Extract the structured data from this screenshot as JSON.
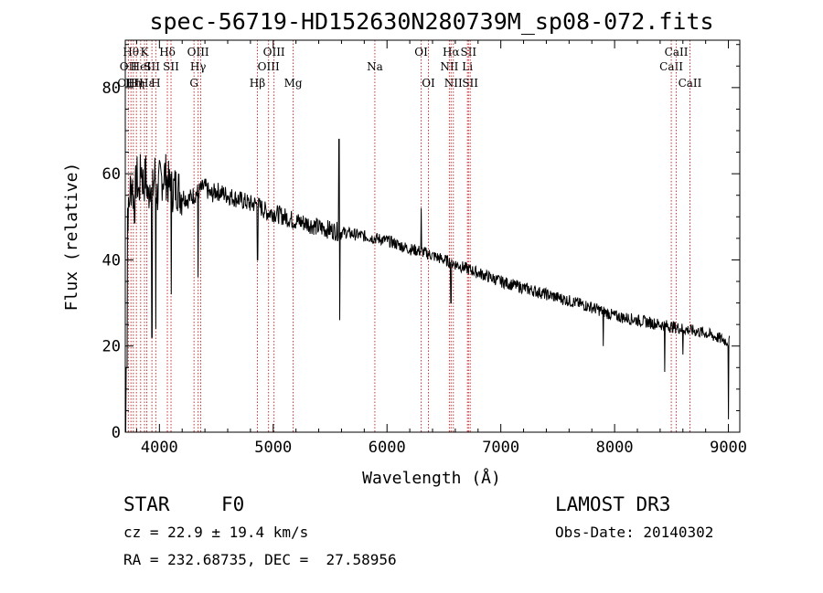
{
  "chart_data": {
    "type": "line",
    "title": "spec-56719-HD152630N280739M_sp08-072.fits",
    "xlabel": "Wavelength (Å)",
    "ylabel": "Flux (relative)",
    "xlim": [
      3700,
      9100
    ],
    "ylim": [
      0,
      91
    ],
    "xticks": [
      4000,
      5000,
      6000,
      7000,
      8000,
      9000
    ],
    "yticks": [
      0,
      20,
      40,
      60,
      80
    ],
    "series": [
      {
        "name": "flux",
        "x": [
          3700,
          3710,
          3720,
          3730,
          3740,
          3760,
          3780,
          3800,
          3820,
          3840,
          3860,
          3880,
          3900,
          3920,
          3940,
          3960,
          3980,
          4000,
          4050,
          4100,
          4150,
          4200,
          4250,
          4300,
          4350,
          4400,
          4450,
          4500,
          4600,
          4700,
          4800,
          4850,
          4900,
          4950,
          5000,
          5100,
          5200,
          5300,
          5400,
          5500,
          5580,
          5600,
          5700,
          5800,
          5900,
          6000,
          6100,
          6200,
          6300,
          6400,
          6500,
          6560,
          6600,
          6700,
          6800,
          6900,
          7000,
          7200,
          7400,
          7600,
          7800,
          7900,
          8000,
          8200,
          8400,
          8500,
          8600,
          8700,
          8800,
          8900,
          9000
        ],
        "y": [
          0,
          48,
          52,
          50,
          56,
          58,
          52,
          60,
          55,
          62,
          57,
          60,
          54,
          59,
          56,
          60,
          55,
          58,
          60,
          56,
          57,
          55,
          54,
          55,
          56,
          57,
          55,
          56,
          55,
          54,
          53,
          53,
          52,
          51,
          51,
          50,
          49,
          48.5,
          47.5,
          47,
          46.5,
          46.5,
          46,
          45.5,
          45,
          44.5,
          43.5,
          42.5,
          42,
          41,
          40,
          39.5,
          39,
          38,
          37,
          36,
          35,
          33.5,
          32,
          30.5,
          29,
          28,
          27,
          26,
          25,
          24.5,
          24,
          23.5,
          23,
          22,
          21
        ]
      }
    ],
    "emission_spikes": [
      {
        "x": 5577,
        "y": 68
      },
      {
        "x": 6300,
        "y": 52
      },
      {
        "x": 4100,
        "y": 60
      }
    ],
    "absorption_dips": [
      {
        "x": 3934,
        "y": 22
      },
      {
        "x": 3968,
        "y": 24
      },
      {
        "x": 4101,
        "y": 32
      },
      {
        "x": 4340,
        "y": 36
      },
      {
        "x": 4861,
        "y": 40
      },
      {
        "x": 5584,
        "y": 26
      },
      {
        "x": 6563,
        "y": 30
      },
      {
        "x": 7900,
        "y": 20
      },
      {
        "x": 8440,
        "y": 14
      },
      {
        "x": 8600,
        "y": 18
      },
      {
        "x": 9000,
        "y": 3
      }
    ],
    "line_markers": [
      {
        "x": 3727,
        "labels": [
          "OII",
          "OIII"
        ],
        "rows": [
          1,
          2
        ]
      },
      {
        "x": 3750,
        "labels": [
          "Hθ"
        ],
        "rows": [
          0
        ]
      },
      {
        "x": 3771,
        "labels": [
          "Hη"
        ],
        "rows": [
          2
        ]
      },
      {
        "x": 3798,
        "labels": [
          "Hη"
        ],
        "rows": [
          2
        ]
      },
      {
        "x": 3835,
        "labels": [
          "HeI"
        ],
        "rows": [
          1
        ]
      },
      {
        "x": 3869,
        "labels": [
          "K"
        ],
        "rows": [
          0
        ]
      },
      {
        "x": 3889,
        "labels": [
          "Hε"
        ],
        "rows": [
          2
        ]
      },
      {
        "x": 3934,
        "labels": [
          "SII"
        ],
        "rows": [
          1
        ]
      },
      {
        "x": 3968,
        "labels": [
          "H"
        ],
        "rows": [
          2
        ]
      },
      {
        "x": 4070,
        "labels": [
          "Hδ"
        ],
        "rows": [
          0
        ]
      },
      {
        "x": 4102,
        "labels": [
          "SII"
        ],
        "rows": [
          1
        ]
      },
      {
        "x": 4304,
        "labels": [
          "G"
        ],
        "rows": [
          2
        ]
      },
      {
        "x": 4340,
        "labels": [
          "OIII",
          "Hγ"
        ],
        "rows": [
          0,
          1
        ]
      },
      {
        "x": 4363,
        "labels": [],
        "rows": []
      },
      {
        "x": 4861,
        "labels": [
          "Hβ"
        ],
        "rows": [
          2
        ]
      },
      {
        "x": 4959,
        "labels": [
          "OIII"
        ],
        "rows": [
          1
        ]
      },
      {
        "x": 5007,
        "labels": [
          "OIII"
        ],
        "rows": [
          0
        ]
      },
      {
        "x": 5175,
        "labels": [
          "Mg"
        ],
        "rows": [
          2
        ]
      },
      {
        "x": 5893,
        "labels": [
          "Na"
        ],
        "rows": [
          1
        ]
      },
      {
        "x": 6300,
        "labels": [
          "OI"
        ],
        "rows": [
          0
        ]
      },
      {
        "x": 6364,
        "labels": [
          "OI"
        ],
        "rows": [
          2
        ]
      },
      {
        "x": 6548,
        "labels": [
          "NII"
        ],
        "rows": [
          1
        ]
      },
      {
        "x": 6563,
        "labels": [
          "Hα"
        ],
        "rows": [
          0
        ]
      },
      {
        "x": 6583,
        "labels": [
          "NII"
        ],
        "rows": [
          2
        ]
      },
      {
        "x": 6707,
        "labels": [
          "Li"
        ],
        "rows": [
          1
        ]
      },
      {
        "x": 6716,
        "labels": [
          "SII"
        ],
        "rows": [
          0
        ]
      },
      {
        "x": 6731,
        "labels": [
          "SII"
        ],
        "rows": [
          2
        ]
      },
      {
        "x": 8498,
        "labels": [
          "CaII"
        ],
        "rows": [
          1
        ]
      },
      {
        "x": 8542,
        "labels": [
          "CaII"
        ],
        "rows": [
          0
        ]
      },
      {
        "x": 8662,
        "labels": [
          "CaII"
        ],
        "rows": [
          2
        ]
      }
    ]
  },
  "info": {
    "class": "STAR",
    "subclass": "F0",
    "survey": "LAMOST DR3",
    "cz": "cz = 22.9 ± 19.4 km/s",
    "obs_date": "Obs-Date: 20140302",
    "coords": "RA = 232.68735, DEC =  27.58956"
  },
  "colors": {
    "marker": "#cc3333",
    "trace": "#000000"
  }
}
